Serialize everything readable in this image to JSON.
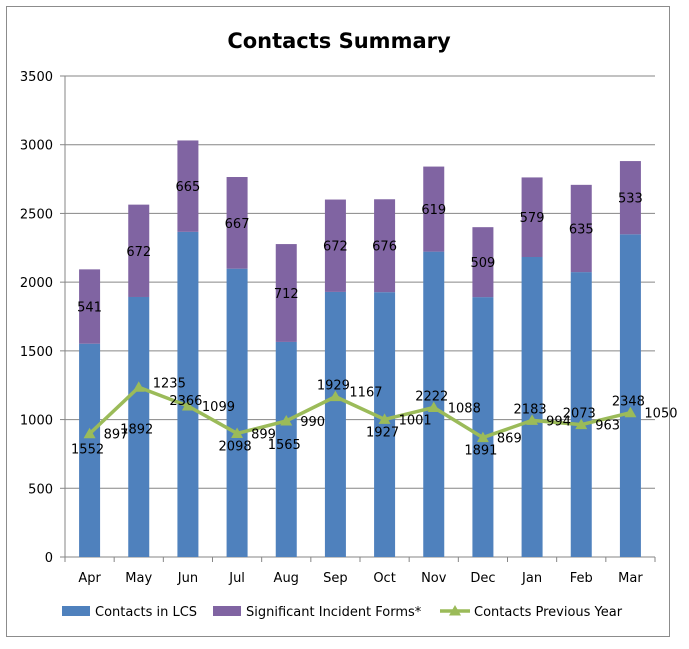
{
  "chart_data": {
    "type": "bar",
    "title": "Contacts Summary",
    "xlabel": "",
    "ylabel": "",
    "ylim": [
      0,
      3500
    ],
    "yticks": [
      0,
      500,
      1000,
      1500,
      2000,
      2500,
      3000,
      3500
    ],
    "grid": true,
    "legend_position": "bottom",
    "stacked": true,
    "categories": [
      "Apr",
      "May",
      "Jun",
      "Jul",
      "Aug",
      "Sep",
      "Oct",
      "Nov",
      "Dec",
      "Jan",
      "Feb",
      "Mar"
    ],
    "series": [
      {
        "name": "Contacts in LCS",
        "type": "bar",
        "color": "#4f81bd",
        "values": [
          1552,
          1892,
          2366,
          2098,
          1565,
          1929,
          1927,
          2222,
          1891,
          2183,
          2073,
          2348
        ]
      },
      {
        "name": "Significant Incident Forms*",
        "type": "bar",
        "color": "#8064a2",
        "values": [
          541,
          672,
          665,
          667,
          712,
          672,
          676,
          619,
          509,
          579,
          635,
          533
        ]
      },
      {
        "name": "Contacts Previous Year",
        "type": "line",
        "color": "#9bbb59",
        "marker": "triangle",
        "values": [
          897,
          1235,
          1099,
          899,
          990,
          1167,
          1001,
          1088,
          869,
          994,
          963,
          1050
        ]
      }
    ]
  }
}
